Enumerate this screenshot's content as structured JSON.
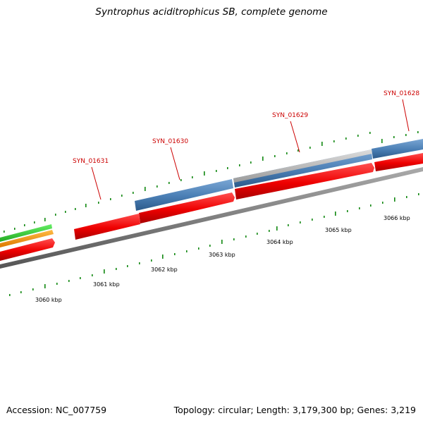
{
  "title": "Syntrophus aciditrophicus SB, complete genome",
  "footer": {
    "accession": "Accession: NC_007759",
    "summary": "Topology: circular; Length: 3,179,300 bp; Genes: 3,219"
  },
  "colors": {
    "forward_cds": "#4a7eb4",
    "reverse_cds": "#ee0000",
    "pseudo": "#b8b8b8",
    "green_track": "#33cc33",
    "orange_track": "#ff9900",
    "backbone": "#808080",
    "ticks": "#118811",
    "label": "#cc0000"
  },
  "gene_labels": [
    "SYN_01631",
    "SYN_01630",
    "SYN_01629",
    "SYN_01628"
  ],
  "scale_ticks": [
    "3060 kbp",
    "3061 kbp",
    "3062 kbp",
    "3063 kbp",
    "3064 kbp",
    "3065 kbp",
    "3066 kbp"
  ]
}
